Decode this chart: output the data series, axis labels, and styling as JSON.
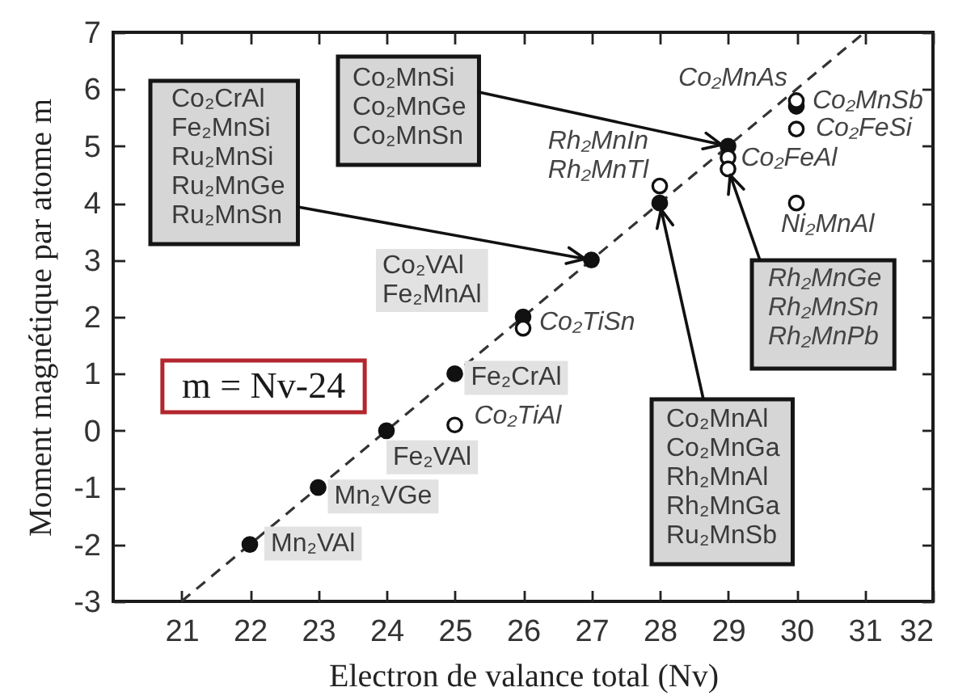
{
  "chart_data": {
    "type": "scatter",
    "xlabel": "Electron de valance total (Nv)",
    "ylabel": "Moment magnétique par atome m",
    "xlim": [
      20,
      32
    ],
    "xticks": [
      21,
      22,
      23,
      24,
      25,
      26,
      27,
      28,
      29,
      30,
      31,
      32
    ],
    "ylim": [
      -3,
      7
    ],
    "yticks": [
      -3,
      -2,
      -1,
      0,
      1,
      2,
      3,
      4,
      5,
      6,
      7
    ],
    "series": [
      {
        "type": "line",
        "color": "#333333",
        "line_style": "dashed",
        "x": [
          21,
          31
        ],
        "values": [
          -3,
          7
        ]
      },
      {
        "color": "#111111",
        "marker": "circle",
        "x": [
          22,
          23,
          24,
          25,
          26,
          27,
          28,
          29,
          30
        ],
        "values": [
          -2,
          -1,
          0,
          1,
          2,
          3,
          4,
          5,
          5.7
        ]
      },
      {
        "color": "#ffffff",
        "marker": "circle",
        "x": [
          25,
          26,
          28,
          29,
          29,
          30,
          30,
          30
        ],
        "values": [
          0.1,
          1.8,
          4.3,
          4.8,
          4.6,
          5.8,
          5.3,
          4
        ]
      }
    ],
    "annotations": [
      {
        "text": "Co₂CrAl\nFe₂MnSi\nRu₂MnSi\nRu₂MnGe\nRu₂MnSn",
        "x": 27,
        "y": 3
      },
      {
        "text": "Co₂MnSi\nCo₂MnGe\nCo₂MnSn",
        "x": 29,
        "y": 5
      },
      {
        "text": "Co₂MnAl\nCo₂MnGa\nRh₂MnAl\nRh₂MnGa\nRu₂MnSb",
        "x": 28,
        "y": 4
      },
      {
        "text": "Rh₂MnGe\nRh₂MnSn\nRh₂MnPb",
        "x": 29,
        "y": 4.6
      },
      {
        "text": "Co₂VAl\nFe₂MnAl",
        "x": 26,
        "y": 2
      },
      {
        "text": "Fe₂CrAl",
        "x": 25,
        "y": 1
      },
      {
        "text": "Fe₂VAl",
        "x": 24,
        "y": 0
      },
      {
        "text": "Mn₂VGe",
        "x": 23,
        "y": -1
      },
      {
        "text": "Mn₂VAl",
        "x": 22,
        "y": -2
      },
      {
        "text": "Co₂TiSn",
        "x": 26,
        "y": 1.8
      },
      {
        "text": "Co₂TiAl",
        "x": 25,
        "y": 0.1
      },
      {
        "text": "Rh₂MnIn\nRh₂MnTl",
        "x": 28,
        "y": 4.3
      },
      {
        "text": "Co₂MnAs",
        "x": 30,
        "y": 5.7
      },
      {
        "text": "Co₂MnSb",
        "x": 30,
        "y": 5.8
      },
      {
        "text": "Co₂FeSi",
        "x": 30,
        "y": 5.3
      },
      {
        "text": "Co₂FeAl",
        "x": 29,
        "y": 4.8
      },
      {
        "text": "Ni₂MnAl",
        "x": 30,
        "y": 4
      },
      "m = Nv-24"
    ]
  }
}
